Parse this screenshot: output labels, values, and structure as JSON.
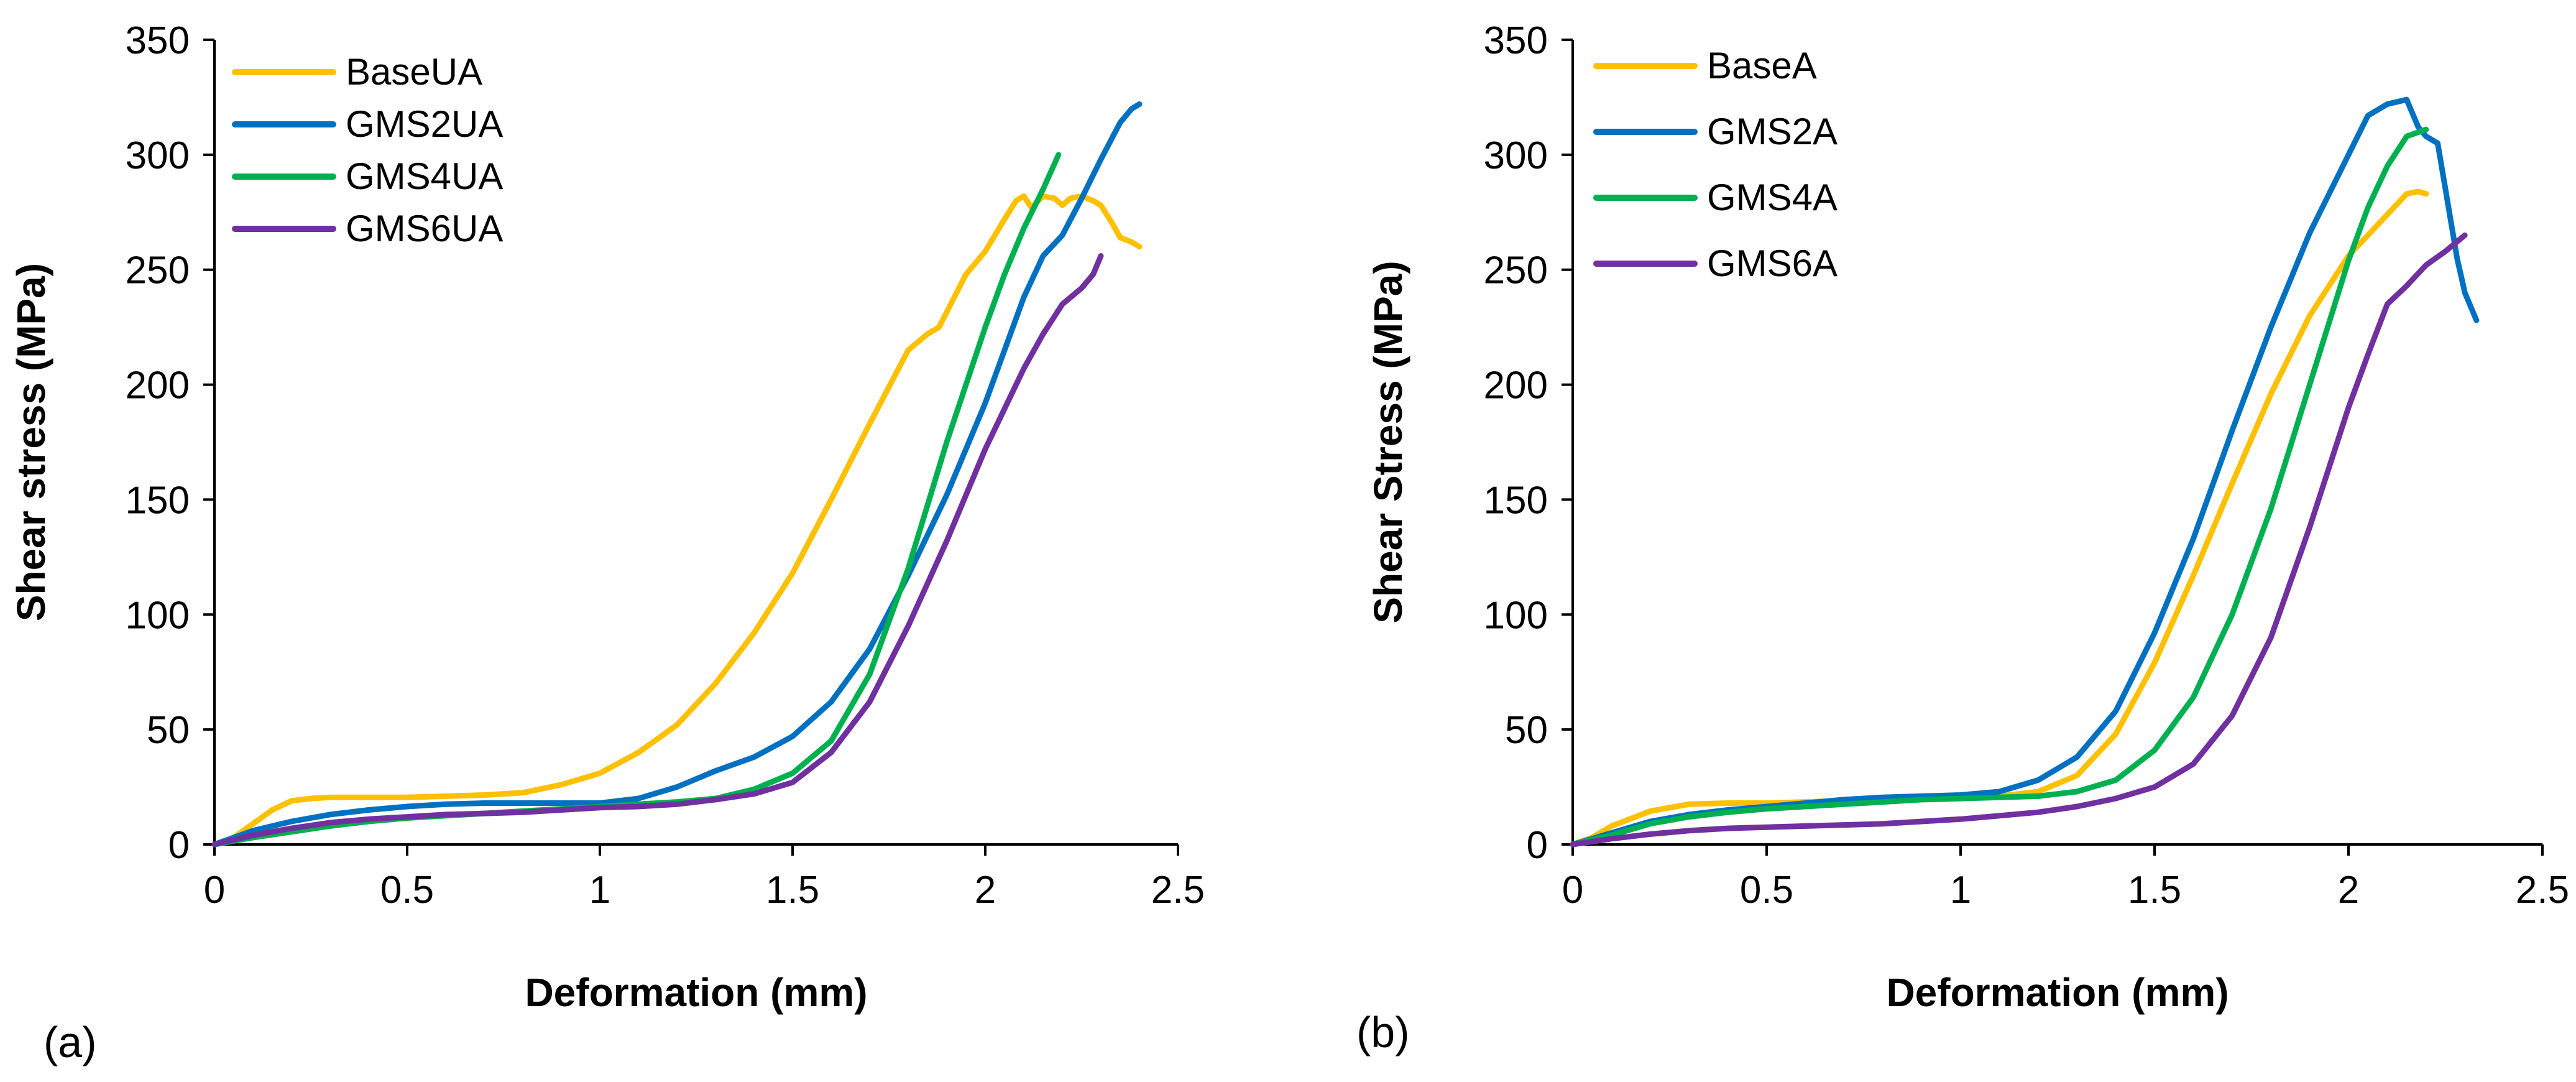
{
  "chart_data": [
    {
      "type": "line",
      "panel_label": "(a)",
      "xlabel": "Deformation (mm)",
      "ylabel": "Shear stress (MPa)",
      "xlim": [
        0,
        2.5
      ],
      "ylim": [
        0,
        350
      ],
      "xticks": [
        0,
        0.5,
        1,
        1.5,
        2,
        2.5
      ],
      "xtick_labels": [
        "0",
        "0.5",
        "1",
        "1.5",
        "2",
        "2.5"
      ],
      "yticks": [
        0,
        50,
        100,
        150,
        200,
        250,
        300,
        350
      ],
      "ytick_labels": [
        "0",
        "50",
        "100",
        "150",
        "200",
        "250",
        "300",
        "350"
      ],
      "grid": false,
      "legend": "top-left",
      "series": [
        {
          "name": "BaseUA",
          "color": "#FFC000",
          "x": [
            0,
            0.05,
            0.1,
            0.15,
            0.2,
            0.25,
            0.3,
            0.4,
            0.5,
            0.6,
            0.7,
            0.8,
            0.9,
            1.0,
            1.1,
            1.2,
            1.3,
            1.4,
            1.5,
            1.6,
            1.7,
            1.8,
            1.85,
            1.88,
            1.95,
            2.0,
            2.05,
            2.08,
            2.1,
            2.12,
            2.15,
            2.18,
            2.2,
            2.22,
            2.25,
            2.28,
            2.3,
            2.33,
            2.35,
            2.38,
            2.4
          ],
          "y": [
            0,
            3,
            9,
            15,
            19,
            20,
            20.5,
            20.5,
            20.5,
            21,
            21.5,
            22.5,
            26,
            31,
            40,
            52,
            70,
            92,
            118,
            150,
            183,
            215,
            222,
            225,
            248,
            258,
            272,
            280,
            282,
            277,
            282,
            281,
            278,
            281,
            282,
            280,
            278,
            270,
            264,
            262,
            260
          ]
        },
        {
          "name": "GMS2UA",
          "color": "#0070C0",
          "x": [
            0,
            0.05,
            0.1,
            0.2,
            0.3,
            0.4,
            0.5,
            0.6,
            0.7,
            0.8,
            0.9,
            1.0,
            1.1,
            1.2,
            1.3,
            1.4,
            1.5,
            1.6,
            1.7,
            1.8,
            1.9,
            2.0,
            2.05,
            2.1,
            2.15,
            2.2,
            2.25,
            2.3,
            2.35,
            2.38,
            2.4
          ],
          "y": [
            0,
            3,
            6,
            10,
            13,
            15,
            16.5,
            17.5,
            18,
            18,
            18,
            18,
            20,
            25,
            32,
            38,
            47,
            62,
            85,
            117,
            152,
            192,
            215,
            238,
            256,
            265,
            281,
            298,
            314,
            320,
            322
          ]
        },
        {
          "name": "GMS4UA",
          "color": "#00B050",
          "x": [
            0,
            0.1,
            0.2,
            0.3,
            0.4,
            0.5,
            0.6,
            0.7,
            0.8,
            0.9,
            1.0,
            1.1,
            1.2,
            1.3,
            1.4,
            1.5,
            1.6,
            1.7,
            1.8,
            1.9,
            2.0,
            2.05,
            2.1,
            2.15,
            2.19
          ],
          "y": [
            0,
            3,
            5.5,
            8,
            10,
            11.5,
            12.5,
            13.5,
            14.5,
            15.5,
            16.5,
            17.5,
            18.5,
            20,
            24,
            31,
            45,
            74,
            120,
            175,
            225,
            248,
            268,
            285,
            300
          ]
        },
        {
          "name": "GMS6UA",
          "color": "#7030A0",
          "x": [
            0,
            0.1,
            0.2,
            0.3,
            0.4,
            0.5,
            0.6,
            0.7,
            0.8,
            0.9,
            1.0,
            1.1,
            1.2,
            1.3,
            1.4,
            1.5,
            1.6,
            1.7,
            1.8,
            1.9,
            2.0,
            2.1,
            2.15,
            2.2,
            2.25,
            2.28,
            2.3
          ],
          "y": [
            0,
            4,
            7,
            9.5,
            11,
            12,
            13,
            13.5,
            14,
            15,
            16,
            16.5,
            17.5,
            19.5,
            22,
            27,
            40,
            62,
            95,
            132,
            172,
            207,
            222,
            235,
            242,
            248,
            256
          ]
        }
      ]
    },
    {
      "type": "line",
      "panel_label": "(b)",
      "xlabel": "Deformation (mm)",
      "ylabel": "Shear Stress (MPa)",
      "xlim": [
        0,
        2.5
      ],
      "ylim": [
        0,
        350
      ],
      "xticks": [
        0,
        0.5,
        1,
        1.5,
        2,
        2.5
      ],
      "xtick_labels": [
        "0",
        "0.5",
        "1",
        "1.5",
        "2",
        "2.5"
      ],
      "yticks": [
        0,
        50,
        100,
        150,
        200,
        250,
        300,
        350
      ],
      "ytick_labels": [
        "0",
        "50",
        "100",
        "150",
        "200",
        "250",
        "300",
        "350"
      ],
      "grid": false,
      "legend": "top-left",
      "series": [
        {
          "name": "BaseA",
          "color": "#FFC000",
          "x": [
            0,
            0.05,
            0.1,
            0.2,
            0.3,
            0.4,
            0.5,
            0.6,
            0.7,
            0.8,
            0.9,
            1.0,
            1.1,
            1.2,
            1.3,
            1.4,
            1.5,
            1.6,
            1.7,
            1.8,
            1.9,
            2.0,
            2.1,
            2.15,
            2.18,
            2.2
          ],
          "y": [
            0,
            3,
            8,
            14.5,
            17.5,
            18,
            18,
            18.5,
            19,
            19,
            19.5,
            20,
            21,
            23,
            30,
            48,
            79,
            117,
            157,
            196,
            230,
            256,
            274,
            283,
            284,
            283
          ]
        },
        {
          "name": "GMS2A",
          "color": "#0070C0",
          "x": [
            0,
            0.1,
            0.2,
            0.3,
            0.4,
            0.5,
            0.6,
            0.7,
            0.8,
            0.9,
            1.0,
            1.1,
            1.2,
            1.3,
            1.4,
            1.5,
            1.6,
            1.7,
            1.8,
            1.9,
            2.0,
            2.05,
            2.1,
            2.15,
            2.18,
            2.2,
            2.23,
            2.25,
            2.28,
            2.3,
            2.33
          ],
          "y": [
            0,
            5,
            10,
            13,
            15,
            16.5,
            18,
            19.5,
            20.5,
            21,
            21.5,
            23,
            28,
            38,
            58,
            92,
            133,
            180,
            225,
            266,
            300,
            317,
            322,
            324,
            312,
            308,
            305,
            285,
            255,
            240,
            228
          ]
        },
        {
          "name": "GMS4A",
          "color": "#00B050",
          "x": [
            0,
            0.1,
            0.2,
            0.3,
            0.4,
            0.5,
            0.6,
            0.7,
            0.8,
            0.9,
            1.0,
            1.1,
            1.2,
            1.3,
            1.4,
            1.5,
            1.6,
            1.7,
            1.8,
            1.9,
            2.0,
            2.05,
            2.1,
            2.15,
            2.2
          ],
          "y": [
            0,
            4,
            9,
            12,
            14,
            15.5,
            16.5,
            17.5,
            18.5,
            19.5,
            20,
            20.5,
            21,
            23,
            28,
            41,
            64,
            100,
            146,
            200,
            254,
            277,
            295,
            308,
            311
          ]
        },
        {
          "name": "GMS6A",
          "color": "#7030A0",
          "x": [
            0,
            0.1,
            0.2,
            0.3,
            0.4,
            0.5,
            0.6,
            0.7,
            0.8,
            0.9,
            1.0,
            1.1,
            1.2,
            1.3,
            1.4,
            1.5,
            1.6,
            1.7,
            1.8,
            1.9,
            2.0,
            2.05,
            2.1,
            2.15,
            2.2,
            2.25,
            2.3
          ],
          "y": [
            0,
            2.5,
            4.5,
            6,
            7,
            7.5,
            8,
            8.5,
            9,
            10,
            11,
            12.5,
            14,
            16.5,
            20,
            25,
            35,
            56,
            90,
            138,
            190,
            213,
            235,
            243,
            252,
            258,
            265
          ]
        }
      ]
    }
  ]
}
